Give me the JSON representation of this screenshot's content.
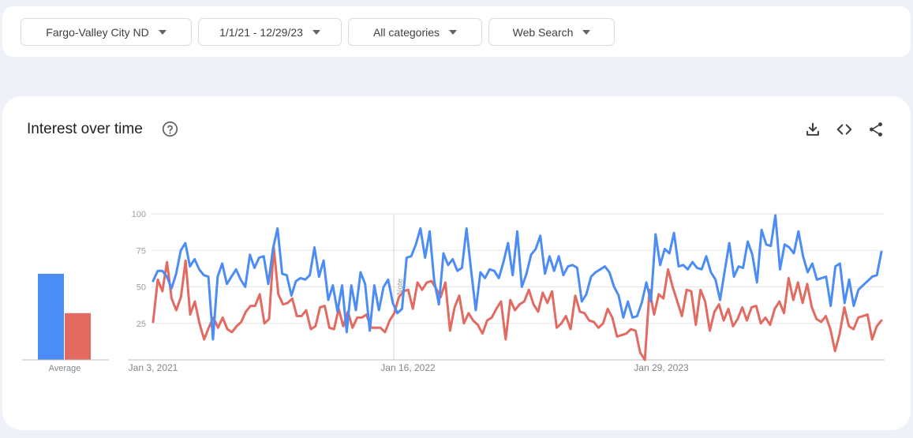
{
  "filters": {
    "location": "Fargo-Valley City ND",
    "date_range": "1/1/21 - 12/29/23",
    "category": "All categories",
    "search_type": "Web Search"
  },
  "card": {
    "title": "Interest over time"
  },
  "icons": {
    "help": "help-circle-icon",
    "download": "download-icon",
    "embed": "embed-code-icon",
    "share": "share-icon"
  },
  "chart_data": {
    "type": "line",
    "y_ticks": [
      "100",
      "75",
      "50",
      "25"
    ],
    "ylim": [
      0,
      100
    ],
    "x_tick_labels": [
      "Jan 3, 2021",
      "Jan 16, 2022",
      "Jan 29, 2023"
    ],
    "annotation": "Note",
    "average_label": "Average",
    "colors": {
      "blue": "#4c8cf5",
      "red": "#e26a61"
    },
    "averages": {
      "blue": 59,
      "red": 32
    },
    "series": [
      {
        "color": "#4c8cf5",
        "values": [
          54,
          61,
          61,
          57,
          49,
          59,
          75,
          80,
          64,
          69,
          62,
          58,
          57,
          14,
          57,
          66,
          52,
          57,
          62,
          55,
          50,
          72,
          63,
          70,
          71,
          52,
          76,
          90,
          59,
          58,
          44,
          54,
          56,
          55,
          58,
          77,
          57,
          68,
          41,
          51,
          33,
          51,
          19,
          51,
          34,
          60,
          52,
          20,
          51,
          34,
          50,
          55,
          39,
          32,
          35,
          70,
          71,
          79,
          90,
          70,
          88,
          54,
          38,
          73,
          65,
          69,
          61,
          63,
          90,
          61,
          34,
          60,
          56,
          62,
          61,
          56,
          67,
          80,
          58,
          88,
          50,
          59,
          72,
          76,
          85,
          59,
          71,
          61,
          71,
          58,
          64,
          65,
          63,
          40,
          45,
          57,
          60,
          62,
          64,
          60,
          50,
          44,
          29,
          40,
          29,
          30,
          39,
          53,
          40,
          86,
          65,
          76,
          73,
          87,
          64,
          65,
          62,
          67,
          63,
          62,
          71,
          60,
          55,
          41,
          61,
          80,
          57,
          64,
          63,
          81,
          72,
          53,
          89,
          79,
          78,
          99,
          62,
          79,
          77,
          73,
          88,
          71,
          60,
          66,
          55,
          56,
          57,
          37,
          64,
          66,
          39,
          55,
          37,
          48,
          51,
          54,
          57,
          58,
          74
        ]
      },
      {
        "color": "#e26a61",
        "values": [
          26,
          55,
          47,
          67,
          42,
          34,
          43,
          68,
          31,
          40,
          25,
          14,
          22,
          29,
          22,
          29,
          21,
          19,
          23,
          26,
          33,
          37,
          37,
          45,
          25,
          28,
          77,
          45,
          38,
          39,
          42,
          30,
          30,
          34,
          21,
          23,
          36,
          37,
          22,
          21,
          35,
          23,
          33,
          22,
          29,
          29,
          31,
          22,
          22,
          22,
          19,
          27,
          32,
          43,
          47,
          48,
          35,
          53,
          48,
          53,
          54,
          49,
          43,
          53,
          20,
          36,
          44,
          25,
          32,
          27,
          24,
          18,
          27,
          29,
          35,
          40,
          14,
          41,
          34,
          38,
          40,
          48,
          38,
          33,
          46,
          39,
          47,
          22,
          25,
          30,
          21,
          44,
          33,
          32,
          27,
          26,
          22,
          25,
          35,
          29,
          16,
          17,
          18,
          21,
          20,
          5,
          0,
          48,
          31,
          45,
          42,
          62,
          50,
          40,
          30,
          48,
          47,
          24,
          48,
          40,
          20,
          33,
          38,
          27,
          35,
          23,
          28,
          36,
          27,
          36,
          37,
          25,
          29,
          24,
          35,
          40,
          32,
          56,
          41,
          53,
          39,
          52,
          36,
          28,
          26,
          30,
          21,
          6,
          18,
          36,
          23,
          21,
          29,
          30,
          31,
          14,
          23,
          27
        ]
      }
    ]
  }
}
